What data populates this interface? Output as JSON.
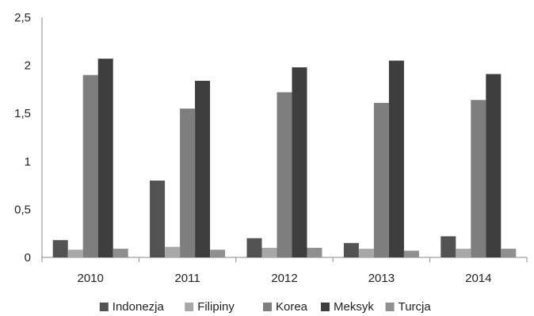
{
  "chart_data": {
    "type": "bar",
    "categories": [
      "2010",
      "2011",
      "2012",
      "2013",
      "2014"
    ],
    "series": [
      {
        "name": "Indonezja",
        "color": "#525252",
        "values": [
          0.18,
          0.8,
          0.2,
          0.15,
          0.22
        ]
      },
      {
        "name": "Filipiny",
        "color": "#a8a8a8",
        "values": [
          0.08,
          0.11,
          0.1,
          0.09,
          0.09
        ]
      },
      {
        "name": "Korea",
        "color": "#7e7e7e",
        "values": [
          1.9,
          1.55,
          1.72,
          1.61,
          1.64
        ]
      },
      {
        "name": "Meksyk",
        "color": "#3e3e3e",
        "values": [
          2.07,
          1.84,
          1.98,
          2.05,
          1.91
        ]
      },
      {
        "name": "Turcja",
        "color": "#8f8f8f",
        "values": [
          0.09,
          0.08,
          0.1,
          0.07,
          0.09
        ]
      }
    ],
    "y_ticks": [
      "0",
      "0,5",
      "1",
      "1,5",
      "2",
      "2,5"
    ],
    "ylim": [
      0,
      2.5
    ],
    "grid": false,
    "legend_position": "bottom"
  }
}
